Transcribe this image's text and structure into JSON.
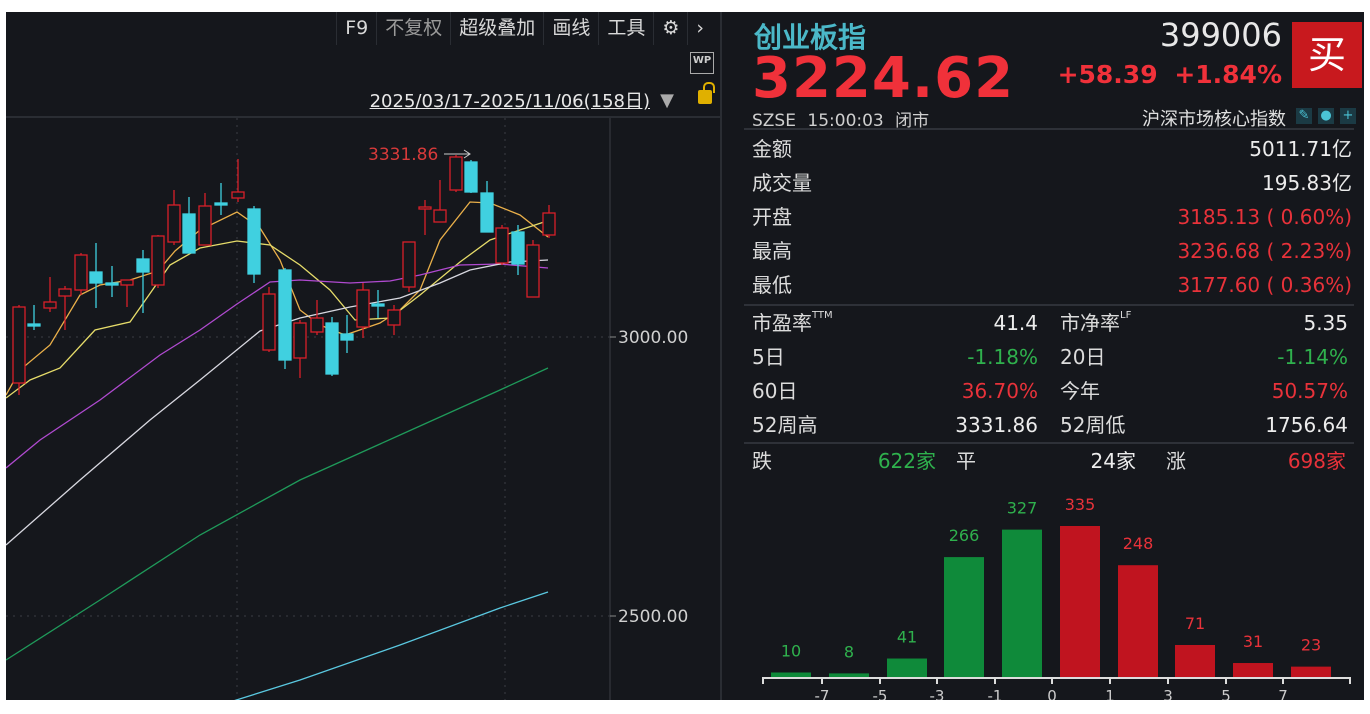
{
  "toolbar": {
    "items": [
      "F9",
      "不复权",
      "超级叠加",
      "画线",
      "工具"
    ],
    "settings_icon": "gear-icon",
    "more_icon": "chevron-right-icon",
    "wp_label": "WP"
  },
  "chart": {
    "range": "2025/03/17-2025/11/06(158日)",
    "axis_labels": [
      "3000.00",
      "2500.00"
    ],
    "high_marker": "3331.86"
  },
  "quote": {
    "name": "创业板指",
    "price": "3224.62",
    "code": "399006",
    "change": "+58.39",
    "change_pct": "+1.84%",
    "buy": "买",
    "exchange": "SZSE",
    "time": "15:00:03",
    "status": "闭市",
    "category": "沪深市场核心指数"
  },
  "stats": [
    {
      "label": "金额",
      "value": "5011.71亿"
    },
    {
      "label": "成交量",
      "value": "195.83亿"
    },
    {
      "label": "开盘",
      "value": "3185.13 ( 0.60%)"
    },
    {
      "label": "最高",
      "value": "3236.68 ( 2.23%)"
    },
    {
      "label": "最低",
      "value": "3177.60 ( 0.36%)"
    }
  ],
  "metrics": [
    {
      "label": "市盈率",
      "sup": "TTM",
      "value": "41.4",
      "label2": "市净率",
      "sup2": "LF",
      "value2": "5.35"
    },
    {
      "label": "5日",
      "value": "-1.18%",
      "label2": "20日",
      "value2": "-1.14%"
    },
    {
      "label": "60日",
      "value": "36.70%",
      "label2": "今年",
      "value2": "50.57%"
    },
    {
      "label": "52周高",
      "value": "3331.86",
      "label2": "52周低",
      "value2": "1756.64"
    }
  ],
  "breadth": {
    "down_label": "跌",
    "down": "622家",
    "flat_label": "平",
    "flat": "24家",
    "up_label": "涨",
    "up": "698家"
  },
  "distribution": {
    "values": [
      10,
      8,
      41,
      266,
      327,
      335,
      248,
      71,
      31,
      23
    ],
    "ticks": [
      "-7",
      "-5",
      "-3",
      "-1",
      "0",
      "1",
      "3",
      "5",
      "7"
    ],
    "colors": {
      "down": "#0f8a3a",
      "up": "#c0141f"
    }
  }
}
